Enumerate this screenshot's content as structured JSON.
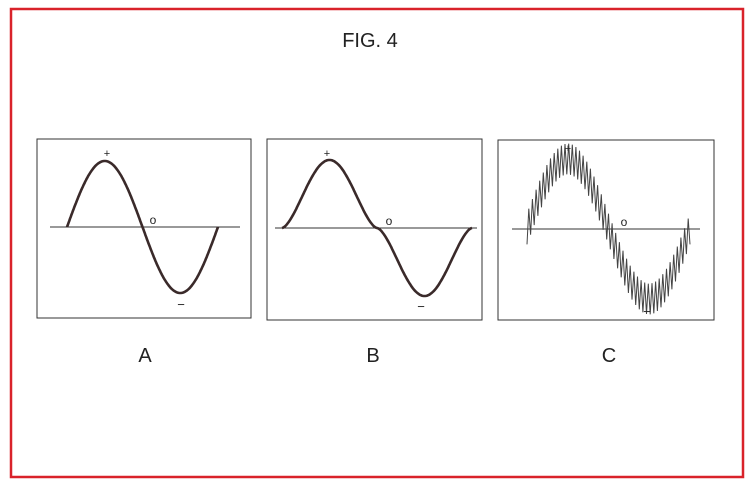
{
  "figure": {
    "title": "FIG. 4",
    "frame_color": "#d9222a",
    "panels": [
      {
        "label": "A",
        "waveform": "sine",
        "plus": "+",
        "zero": "o",
        "minus": "−"
      },
      {
        "label": "B",
        "waveform": "sine with flattened zero crossing",
        "plus": "+",
        "zero": "o",
        "minus": "−"
      },
      {
        "label": "C",
        "waveform": "sine with superimposed sawtooth ripple",
        "plus": "+",
        "zero": "o",
        "minus": "−"
      }
    ]
  }
}
